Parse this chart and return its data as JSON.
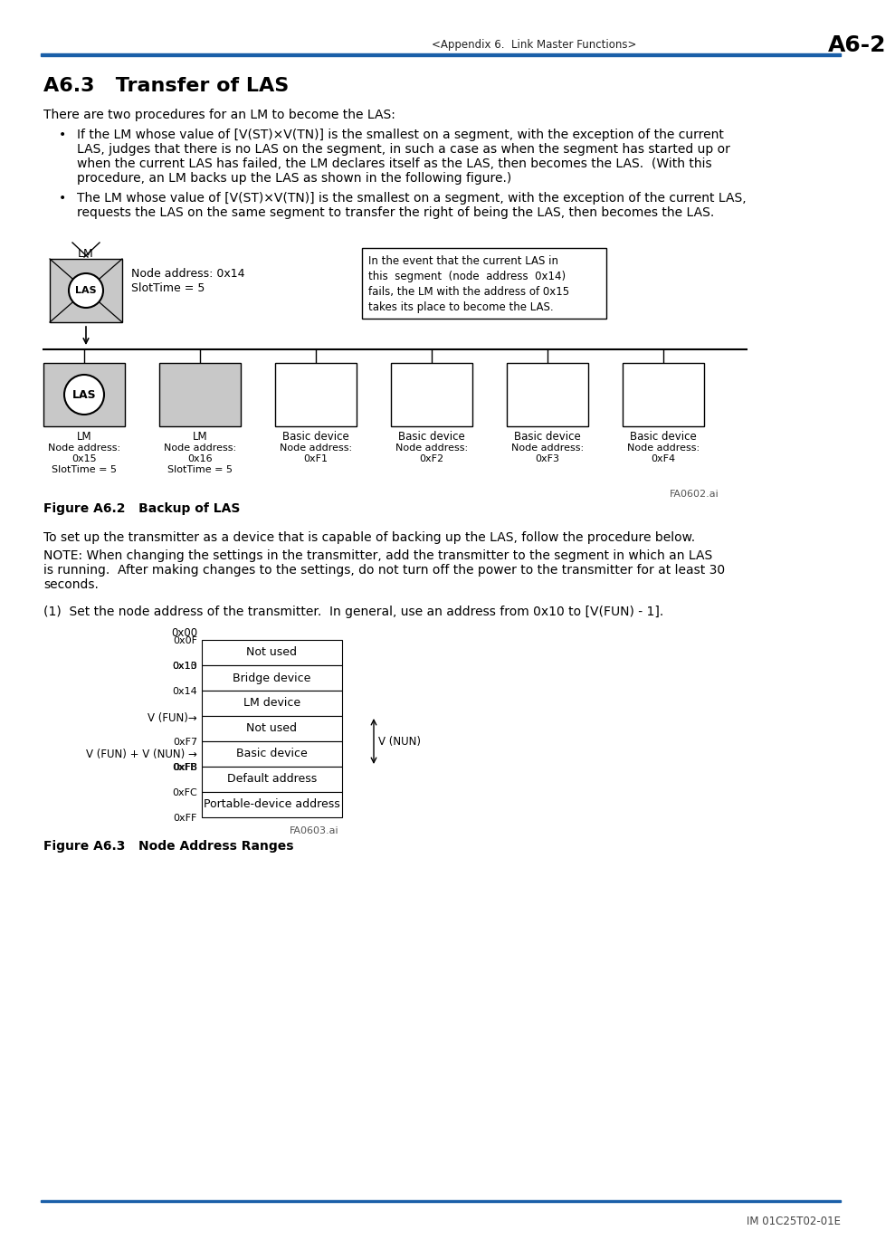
{
  "header_text": "<Appendix 6.  Link Master Functions>",
  "header_page": "A6-2",
  "title": "A6.3   Transfer of LAS",
  "intro": "There are two procedures for an LM to become the LAS:",
  "b1_lines": [
    "If the LM whose value of [V(ST)×V(TN)] is the smallest on a segment, with the exception of the current",
    "LAS, judges that there is no LAS on the segment, in such a case as when the segment has started up or",
    "when the current LAS has failed, the LM declares itself as the LAS, then becomes the LAS.  (With this",
    "procedure, an LM backs up the LAS as shown in the following figure.)"
  ],
  "b2_lines": [
    "The LM whose value of [V(ST)×V(TN)] is the smallest on a segment, with the exception of the current LAS,",
    "requests the LAS on the same segment to transfer the right of being the LAS, then becomes the LAS."
  ],
  "fig_note_lines": [
    "In the event that the current LAS in",
    "this  segment  (node  address  0x14)",
    "fails, the LM with the address of 0x15",
    "takes its place to become the LAS."
  ],
  "figure1_caption": "Figure A6.2   Backup of LAS",
  "figure1_code": "FA0602.ai",
  "para2": "To set up the transmitter as a device that is capable of backing up the LAS, follow the procedure below.",
  "note_lines": [
    "NOTE: When changing the settings in the transmitter, add the transmitter to the segment in which an LAS",
    "is running.  After making changes to the settings, do not turn off the power to the transmitter for at least 30",
    "seconds."
  ],
  "step1": "(1)  Set the node address of the transmitter.  In general, use an address from 0x10 to [V(FUN) - 1].",
  "figure2_caption": "Figure A6.3   Node Address Ranges",
  "figure2_code": "FA0603.ai",
  "footer": "IM 01C25T02-01E",
  "blue_color": "#1a5fa8",
  "bg_color": "#ffffff"
}
